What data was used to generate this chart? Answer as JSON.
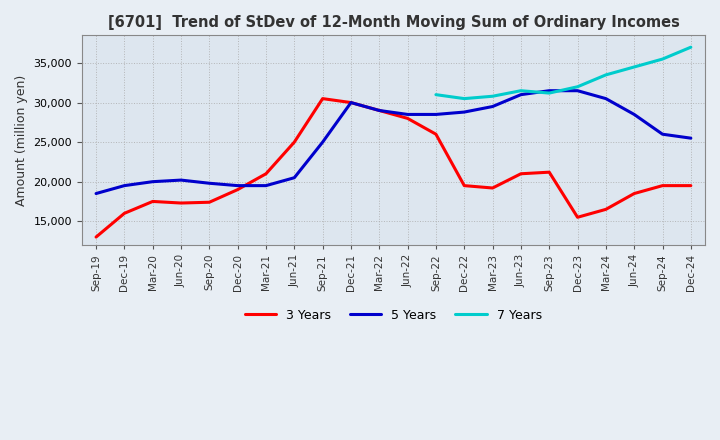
{
  "title": "[6701]  Trend of StDev of 12-Month Moving Sum of Ordinary Incomes",
  "ylabel": "Amount (million yen)",
  "ylim": [
    12000,
    38500
  ],
  "yticks": [
    15000,
    20000,
    25000,
    30000,
    35000
  ],
  "x_labels": [
    "Sep-19",
    "Dec-19",
    "Mar-20",
    "Jun-20",
    "Sep-20",
    "Dec-20",
    "Mar-21",
    "Jun-21",
    "Sep-21",
    "Dec-21",
    "Mar-22",
    "Jun-22",
    "Sep-22",
    "Dec-22",
    "Mar-23",
    "Jun-23",
    "Sep-23",
    "Dec-23",
    "Mar-24",
    "Jun-24",
    "Sep-24",
    "Dec-24"
  ],
  "colors": {
    "3y": "#ff0000",
    "5y": "#0000cc",
    "7y": "#00cccc",
    "10y": "#008000"
  },
  "series_3y": [
    13000,
    16000,
    17500,
    17300,
    17400,
    19000,
    21000,
    25000,
    30500,
    30000,
    29000,
    28000,
    26000,
    19500,
    19200,
    21000,
    21200,
    15500,
    16500,
    18500,
    19500,
    19500
  ],
  "series_5y": [
    18500,
    19500,
    20000,
    20200,
    19800,
    19500,
    19500,
    20500,
    25000,
    30000,
    29000,
    28500,
    28500,
    28800,
    29500,
    31000,
    31500,
    31500,
    30500,
    28500,
    26000,
    25500
  ],
  "series_7y": [
    null,
    null,
    null,
    null,
    null,
    null,
    null,
    null,
    null,
    null,
    null,
    null,
    31000,
    30500,
    30800,
    31500,
    31200,
    32000,
    33500,
    34500,
    35500,
    37000
  ],
  "series_10y": [
    null,
    null,
    null,
    null,
    null,
    null,
    null,
    null,
    null,
    null,
    null,
    null,
    null,
    null,
    null,
    null,
    null,
    null,
    null,
    null,
    null,
    null
  ],
  "background_color": "#e8eef4",
  "plot_bg_color": "#dde6ef",
  "grid_color": "#aaaaaa"
}
